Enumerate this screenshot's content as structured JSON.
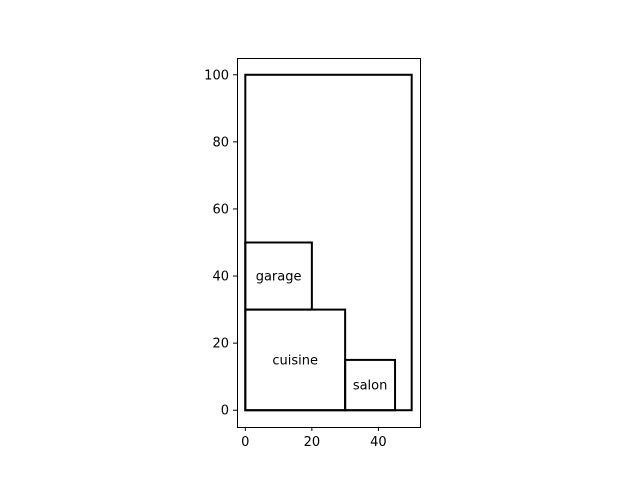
{
  "chart_data": {
    "type": "diagram",
    "title": "",
    "xlabel": "",
    "ylabel": "",
    "xlim": [
      -2.5,
      52.5
    ],
    "ylim": [
      -5,
      105
    ],
    "x_ticks": [
      0,
      20,
      40
    ],
    "y_ticks": [
      0,
      20,
      40,
      60,
      80,
      100
    ],
    "grid": false,
    "rectangles": [
      {
        "name": "outline",
        "label": "",
        "x": 0,
        "y": 0,
        "width": 50,
        "height": 100
      },
      {
        "name": "garage",
        "label": "garage",
        "x": 0,
        "y": 30,
        "width": 20,
        "height": 20
      },
      {
        "name": "cuisine",
        "label": "cuisine",
        "x": 0,
        "y": 0,
        "width": 30,
        "height": 30
      },
      {
        "name": "salon",
        "label": "salon",
        "x": 30,
        "y": 0,
        "width": 15,
        "height": 15
      }
    ]
  }
}
